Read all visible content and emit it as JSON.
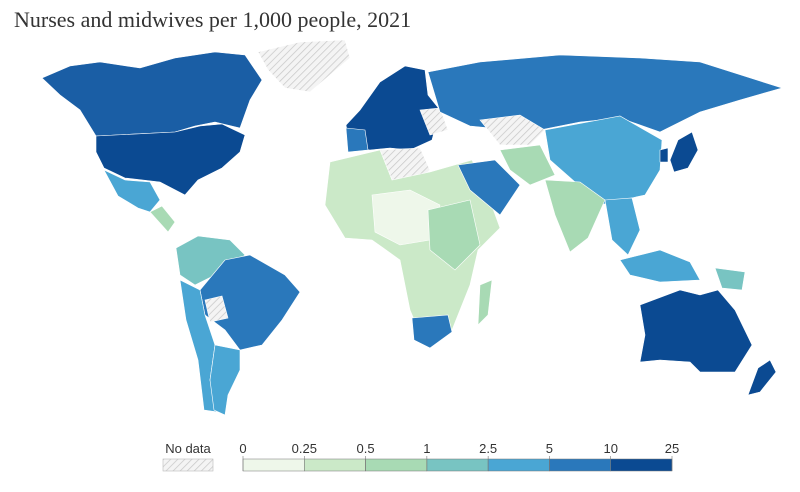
{
  "title": "Nurses and midwives per 1,000 people, 2021",
  "legend": {
    "no_data_label": "No data",
    "ticks": [
      0,
      0.25,
      0.5,
      1,
      2.5,
      5,
      10,
      25
    ],
    "colors": [
      "#eef7ea",
      "#cbe9c8",
      "#a8dab4",
      "#78c4c2",
      "#4aa6d4",
      "#2a78bb",
      "#0b4a92"
    ]
  }
}
